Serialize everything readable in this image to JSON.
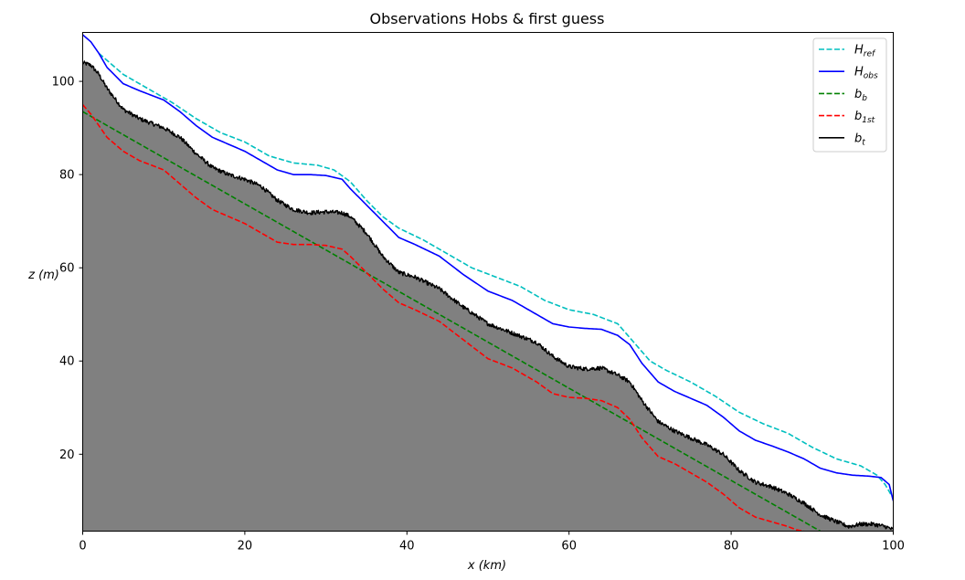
{
  "chart_data": {
    "type": "line",
    "title": "Observations Hobs & first guess",
    "xlabel": "x (km)",
    "ylabel": "z (m)",
    "xlim": [
      0,
      100
    ],
    "ylim": [
      3.5,
      110.5
    ],
    "xticks": [
      0,
      20,
      40,
      60,
      80,
      100
    ],
    "yticks": [
      20,
      40,
      60,
      80,
      100
    ],
    "grid": false,
    "legend_position": "top-right",
    "fill_under": {
      "series": "b_t",
      "color": "#808080"
    },
    "series": [
      {
        "id": "H_ref",
        "label_main": "H",
        "label_sub": "ref",
        "color": "#00bfbf",
        "style": "dashed",
        "x": [
          2,
          5,
          8,
          11,
          14,
          17,
          20,
          23,
          26,
          29,
          31,
          33,
          35,
          37,
          39,
          42,
          45,
          48,
          51,
          54,
          57,
          60,
          63,
          66,
          68,
          70,
          72,
          75,
          78,
          81,
          84,
          87,
          90,
          93,
          96,
          98,
          99,
          100
        ],
        "y": [
          106,
          101.5,
          98.5,
          95.5,
          92,
          89,
          87,
          84,
          82.5,
          82,
          81,
          78.5,
          74.5,
          71,
          68.5,
          66,
          63,
          60,
          58,
          56,
          53,
          51,
          50,
          48,
          44,
          40,
          38,
          35.5,
          32.5,
          29,
          26.5,
          24.5,
          21.5,
          19,
          17.5,
          15.5,
          13.5,
          10.5
        ]
      },
      {
        "id": "H_obs",
        "label_main": "H",
        "label_sub": "obs",
        "color": "#0000ff",
        "style": "solid",
        "x": [
          0,
          1,
          2,
          3,
          5,
          7,
          10,
          12,
          14,
          16,
          18,
          20,
          22,
          24,
          26,
          28,
          30,
          32,
          33,
          35,
          37,
          39,
          41,
          44,
          47,
          50,
          53,
          56,
          58,
          60,
          62,
          64,
          66,
          67.5,
          69,
          71,
          73,
          75,
          77,
          79,
          81,
          83,
          85,
          87,
          89,
          91,
          93,
          95,
          97,
          98.5,
          99.5,
          100
        ],
        "y": [
          110,
          108.5,
          106,
          103,
          99.5,
          98,
          96,
          93.5,
          90.5,
          88,
          86.5,
          85,
          83,
          81,
          80,
          80,
          79.8,
          79,
          77,
          73.5,
          70,
          66.5,
          65,
          62.5,
          58.5,
          55,
          53,
          50,
          48,
          47.3,
          47,
          46.8,
          45.5,
          43.5,
          39.5,
          35.5,
          33.5,
          32,
          30.5,
          28,
          25,
          23,
          21.8,
          20.5,
          19,
          17,
          16,
          15.5,
          15.3,
          15,
          13.5,
          10
        ]
      },
      {
        "id": "b_b",
        "label_main": "b",
        "label_sub": "b",
        "color": "#008000",
        "style": "dashed",
        "x": [
          0,
          91
        ],
        "y": [
          93.5,
          3.5
        ]
      },
      {
        "id": "b_1st",
        "label_main": "b",
        "label_sub": "1st",
        "color": "#ff0000",
        "style": "dashed",
        "x": [
          0,
          1,
          2,
          3,
          5,
          7,
          10,
          12,
          14,
          16,
          18,
          20,
          22,
          24,
          26,
          28,
          30,
          32,
          33,
          35,
          37,
          39,
          41,
          44,
          47,
          50,
          53,
          56,
          58,
          60,
          62,
          64,
          66,
          67.5,
          69,
          71,
          73,
          75,
          77,
          79,
          81,
          83,
          85,
          87,
          88,
          89
        ],
        "y": [
          95,
          93,
          90.5,
          88,
          85,
          83,
          81,
          78,
          75,
          72.5,
          71,
          69.5,
          67.5,
          65.5,
          65,
          65,
          64.8,
          64,
          62.5,
          59,
          55.5,
          52.5,
          51,
          48.5,
          44.5,
          40.5,
          38.5,
          35.5,
          33,
          32.2,
          32,
          31.5,
          30,
          27.5,
          23.5,
          19.5,
          18,
          16,
          14,
          11.5,
          8.5,
          6.5,
          5.5,
          4.5,
          3.8,
          3.5
        ]
      },
      {
        "id": "b_t",
        "label_main": "b",
        "label_sub": "t",
        "color": "#000000",
        "style": "solid",
        "x": [
          0,
          1,
          2,
          3,
          5,
          7,
          10,
          12,
          14,
          16,
          18,
          20,
          22,
          24,
          26,
          28,
          30,
          32,
          33,
          35,
          37,
          39,
          41,
          44,
          47,
          50,
          53,
          56,
          58,
          60,
          62,
          64,
          66,
          67.5,
          69,
          71,
          73,
          75,
          77,
          79,
          81,
          83,
          85,
          87,
          89,
          91,
          93,
          94.5,
          96,
          97.5,
          99,
          100
        ],
        "y": [
          104,
          103.5,
          101.5,
          98.5,
          94,
          92,
          90,
          88,
          84.5,
          81.5,
          80,
          79,
          77.5,
          74.5,
          72.5,
          71.8,
          72,
          71.8,
          71,
          67.5,
          62.5,
          59,
          58,
          55.5,
          51.5,
          48,
          46,
          44,
          41,
          38.8,
          38.3,
          38.5,
          37,
          35.5,
          31.5,
          27,
          25,
          23.5,
          22,
          20,
          16.5,
          14,
          13,
          11.5,
          9.5,
          7,
          5.5,
          4.5,
          5,
          5,
          4.5,
          3.8
        ]
      }
    ]
  }
}
